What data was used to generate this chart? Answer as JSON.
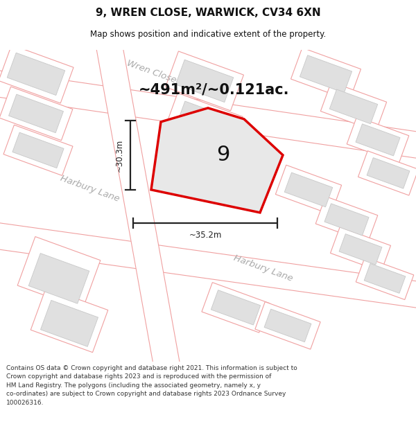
{
  "title": "9, WREN CLOSE, WARWICK, CV34 6XN",
  "subtitle": "Map shows position and indicative extent of the property.",
  "area_text": "~491m²/~0.121ac.",
  "plot_label": "9",
  "dim_width": "~35.2m",
  "dim_height": "~30.3m",
  "street_wren": "Wren Close",
  "street_harbury1": "Harbury Lane",
  "street_harbury2": "Harbury Lane",
  "footer": "Contains OS data © Crown copyright and database right 2021. This information is subject to Crown copyright and database rights 2023 and is reproduced with the permission of HM Land Registry. The polygons (including the associated geometry, namely x, y co-ordinates) are subject to Crown copyright and database rights 2023 Ordnance Survey 100026316.",
  "bg_color": "#ffffff",
  "map_bg": "#ffffff",
  "road_outline": "#f0a0a0",
  "road_fill": "#ffffff",
  "plot_fill": "#e8e8e8",
  "plot_stroke": "#dd0000",
  "building_fill": "#e0e0e0",
  "building_outline": "#c8c8c8",
  "parcel_outline": "#f0a0a0",
  "dim_color": "#222222",
  "street_label_color": "#aaaaaa",
  "title_color": "#111111",
  "footer_color": "#333333"
}
